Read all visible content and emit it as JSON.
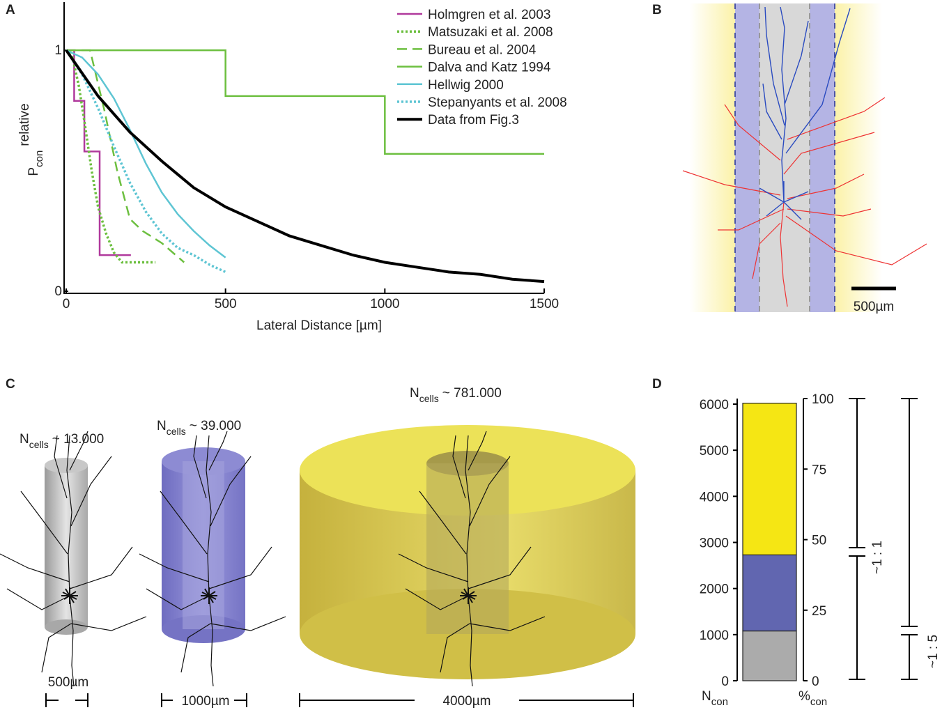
{
  "chart_data": [
    {
      "type": "line",
      "panel": "A",
      "xlabel": "Lateral Distance [µm]",
      "ylabel": {
        "symbol": "P",
        "subscript": "con",
        "superscript": "relative"
      },
      "xlim": [
        0,
        1500
      ],
      "ylim": [
        0,
        1.2
      ],
      "xticks": [
        0,
        500,
        1000,
        1500
      ],
      "yticks": [
        0,
        1
      ],
      "legend": "upper right",
      "series": [
        {
          "name": "Holmgren et al. 2003",
          "color": "#b0399c",
          "style": "solid",
          "linewidth": 2.5,
          "x": [
            0,
            25,
            25,
            57,
            57,
            105,
            105,
            203
          ],
          "values": [
            1,
            1,
            0.79,
            0.79,
            0.58,
            0.58,
            0.15,
            0.15
          ]
        },
        {
          "name": "Matsuzaki et al. 2008",
          "color": "#6cbf3f",
          "style": "dotted",
          "linewidth": 3.5,
          "x": [
            0,
            20,
            40,
            60,
            80,
            100,
            125,
            150,
            175,
            280
          ],
          "values": [
            1,
            0.97,
            0.85,
            0.68,
            0.5,
            0.35,
            0.24,
            0.16,
            0.12,
            0.12
          ]
        },
        {
          "name": "Bureau et al. 2004",
          "color": "#6cbf3f",
          "style": "dashed",
          "linewidth": 2.5,
          "x": [
            0,
            75,
            120,
            160,
            200,
            240,
            300,
            370
          ],
          "values": [
            1,
            1,
            0.75,
            0.5,
            0.3,
            0.25,
            0.2,
            0.12
          ]
        },
        {
          "name": "Dalva and Katz 1994",
          "color": "#6cbf3f",
          "style": "solid",
          "linewidth": 2.5,
          "x": [
            0,
            500,
            500,
            1000,
            1000,
            1500
          ],
          "values": [
            1,
            1,
            0.81,
            0.81,
            0.57,
            0.57
          ]
        },
        {
          "name": "Hellwig 2000",
          "color": "#5ec5d3",
          "style": "solid",
          "linewidth": 2.5,
          "x": [
            0,
            50,
            100,
            150,
            200,
            250,
            300,
            350,
            400,
            450,
            500
          ],
          "values": [
            1,
            0.97,
            0.9,
            0.8,
            0.67,
            0.53,
            0.41,
            0.32,
            0.25,
            0.19,
            0.14
          ]
        },
        {
          "name": "Stepanyants et al. 2008",
          "color": "#5ec5d3",
          "style": "dotted",
          "linewidth": 3.5,
          "x": [
            0,
            50,
            100,
            150,
            200,
            250,
            300,
            350,
            400,
            450,
            500
          ],
          "values": [
            1,
            0.9,
            0.76,
            0.6,
            0.45,
            0.33,
            0.24,
            0.18,
            0.15,
            0.11,
            0.08
          ]
        },
        {
          "name": "Data from Fig.3",
          "color": "#000000",
          "style": "solid",
          "linewidth": 4,
          "x": [
            0,
            100,
            200,
            300,
            400,
            500,
            600,
            700,
            800,
            900,
            1000,
            1100,
            1200,
            1300,
            1400,
            1500
          ],
          "values": [
            1,
            0.81,
            0.66,
            0.54,
            0.43,
            0.35,
            0.29,
            0.23,
            0.19,
            0.15,
            0.12,
            0.1,
            0.08,
            0.07,
            0.05,
            0.04
          ]
        }
      ]
    },
    {
      "type": "stacked_bar",
      "panel": "D",
      "ylabel": {
        "symbol": "N",
        "subscript": "con"
      },
      "y2label": {
        "symbol": "%",
        "subscript": "con"
      },
      "categories": [
        null
      ],
      "ylim": [
        0,
        6000
      ],
      "yticks": [
        0,
        1000,
        2000,
        3000,
        4000,
        5000,
        6000
      ],
      "y2lim": [
        0,
        100
      ],
      "y2ticks": [
        0,
        25,
        50,
        75,
        100
      ],
      "series": [
        {
          "color": "#ababab",
          "values": [
            1080
          ]
        },
        {
          "color": "#6166b0",
          "values": [
            1650
          ]
        },
        {
          "color": "#f5e614",
          "values": [
            3290
          ]
        }
      ],
      "ratios": [
        "~1 : 1",
        "~1 : 5"
      ]
    }
  ],
  "panel_b": {
    "label": "B",
    "scale_bar": "500µm"
  },
  "panel_c": {
    "label": "C",
    "cylinders": [
      {
        "symbol": "N",
        "subscript": "cells",
        "count": "~ 13.000",
        "scale_bar": "500µm"
      },
      {
        "symbol": "N",
        "subscript": "cells",
        "count": "~ 39.000",
        "scale_bar": "1000µm"
      },
      {
        "symbol": "N",
        "subscript": "cells",
        "count": "~ 781.000",
        "scale_bar": "4000µm"
      }
    ]
  }
}
